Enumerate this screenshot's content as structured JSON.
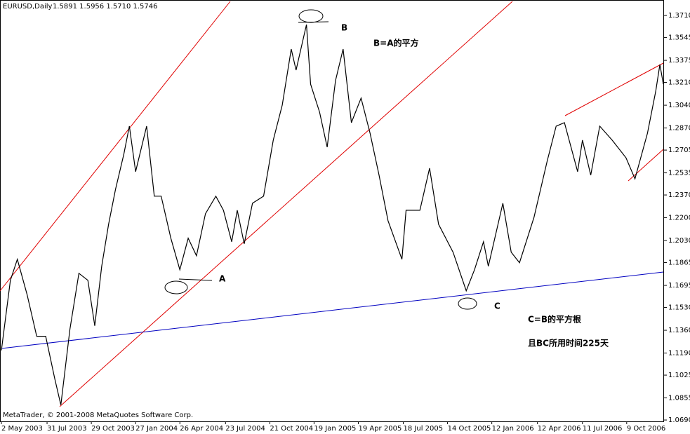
{
  "chart_data": {
    "type": "line",
    "title": "EURUSD,Daily",
    "subtitle": "1.5891 1.5956 1.5710 1.5746",
    "footer": "MetaTrader, © 2001-2008 MetaQuotes Software Corp.",
    "annotations": [
      "A",
      "B",
      "C",
      "B=A的平方",
      "C=B的平方根",
      "且BC所用时间225天"
    ],
    "x": [
      0,
      13,
      23,
      37,
      51,
      64,
      77,
      86,
      99,
      112,
      125,
      135,
      145,
      155,
      165,
      177,
      185,
      194,
      210,
      221,
      231,
      245,
      258,
      270,
      282,
      295,
      310,
      321,
      333,
      341,
      351,
      363,
      379,
      393,
      406,
      419,
      426,
      441,
      447,
      460,
      471,
      483,
      494,
      506,
      520,
      533,
      546,
      559,
      579,
      585,
      605,
      619,
      632,
      653,
      672,
      684,
      697,
      704,
      725,
      737,
      749,
      770,
      789,
      802,
      814,
      833,
      840,
      852,
      865,
      883,
      903,
      916,
      934,
      946,
      952,
      957
    ],
    "series": [
      {
        "color": "#000000",
        "values": [
          1.121,
          1.1733,
          1.189,
          1.1628,
          1.1315,
          1.1315,
          1.1001,
          1.0802,
          1.1367,
          1.1785,
          1.1733,
          1.1393,
          1.1838,
          1.2151,
          1.2413,
          1.2674,
          1.2884,
          1.2544,
          1.2884,
          1.2361,
          1.2361,
          1.2047,
          1.1812,
          1.2047,
          1.1916,
          1.223,
          1.2361,
          1.2256,
          1.2021,
          1.2256,
          1.2005,
          1.2308,
          1.2361,
          1.2779,
          1.3041,
          1.3459,
          1.3302,
          1.3642,
          1.3197,
          1.2988,
          1.2727,
          1.3224,
          1.3459,
          1.291,
          1.3093,
          1.2831,
          1.2518,
          1.2178,
          1.189,
          1.2256,
          1.2256,
          1.257,
          1.2151,
          1.1942,
          1.1655,
          1.1812,
          1.2021,
          1.1838,
          1.2308,
          1.1942,
          1.1864,
          1.2204,
          1.2622,
          1.2884,
          1.291,
          1.2544,
          1.2779,
          1.2518,
          1.2884,
          1.2779,
          1.2648,
          1.2491,
          1.2831,
          1.3145,
          1.3344,
          1.3197
        ]
      }
    ],
    "xlim": [
      0,
      960
    ],
    "xticks": [
      {
        "value": 0,
        "label": "2 May 2003"
      },
      {
        "value": 66,
        "label": "31 Jul 2003"
      },
      {
        "value": 130,
        "label": "29 Oct 2003"
      },
      {
        "value": 194,
        "label": "27 Jan 2004"
      },
      {
        "value": 258,
        "label": "26 Apr 2004"
      },
      {
        "value": 324,
        "label": "23 Jul 2004"
      },
      {
        "value": 388,
        "label": "21 Oct 2004"
      },
      {
        "value": 452,
        "label": "19 Jan 2005"
      },
      {
        "value": 516,
        "label": "19 Apr 2005"
      },
      {
        "value": 581,
        "label": "18 Jul 2005"
      },
      {
        "value": 645,
        "label": "14 Oct 2005"
      },
      {
        "value": 709,
        "label": "12 Jan 2006"
      },
      {
        "value": 775,
        "label": "12 Apr 2006"
      },
      {
        "value": 840,
        "label": "11 Jul 2006"
      },
      {
        "value": 904,
        "label": "9 Oct 2006"
      }
    ],
    "ylim": [
      1.0685,
      1.3815
    ],
    "yticks": [
      {
        "value": 1.371,
        "label": "1.3710"
      },
      {
        "value": 1.3545,
        "label": "1.3545"
      },
      {
        "value": 1.3375,
        "label": "1.3375"
      },
      {
        "value": 1.321,
        "label": "1.3210"
      },
      {
        "value": 1.304,
        "label": "1.3040"
      },
      {
        "value": 1.287,
        "label": "1.2870"
      },
      {
        "value": 1.2705,
        "label": "1.2705"
      },
      {
        "value": 1.2535,
        "label": "1.2535"
      },
      {
        "value": 1.237,
        "label": "1.2370"
      },
      {
        "value": 1.22,
        "label": "1.2200"
      },
      {
        "value": 1.203,
        "label": "1.2030"
      },
      {
        "value": 1.1865,
        "label": "1.1865"
      },
      {
        "value": 1.1695,
        "label": "1.1695"
      },
      {
        "value": 1.153,
        "label": "1.1530"
      },
      {
        "value": 1.136,
        "label": "1.1360"
      },
      {
        "value": 1.119,
        "label": "1.1190"
      },
      {
        "value": 1.1025,
        "label": "1.1025"
      },
      {
        "value": 1.0855,
        "label": "1.0855"
      },
      {
        "value": 1.069,
        "label": "1.0690"
      }
    ],
    "grid": false
  }
}
